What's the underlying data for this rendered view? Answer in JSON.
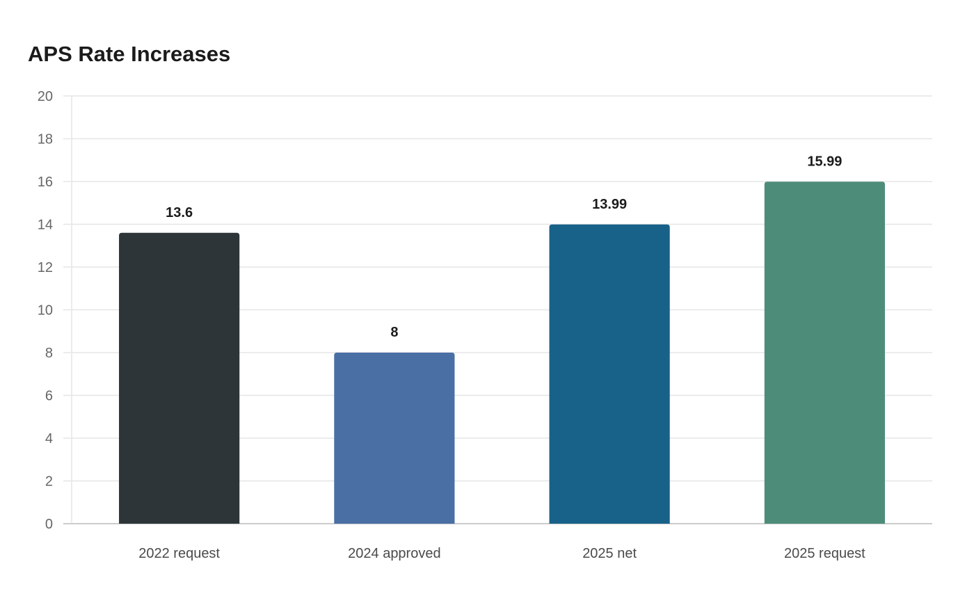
{
  "chart_data": {
    "type": "bar",
    "title": "APS Rate Increases",
    "xlabel": "",
    "ylabel": "",
    "categories": [
      "2022 request",
      "2024 approved",
      "2025 net",
      "2025 request"
    ],
    "values": [
      13.6,
      8,
      13.99,
      15.99
    ],
    "value_labels": [
      "13.6",
      "8",
      "13.99",
      "15.99"
    ],
    "colors": [
      "#2d3538",
      "#4a6fa5",
      "#186189",
      "#4e8c7a"
    ],
    "ylim": [
      0,
      20
    ],
    "yticks": [
      0,
      2,
      4,
      6,
      8,
      10,
      12,
      14,
      16,
      18,
      20
    ],
    "grid": true,
    "legend": "none"
  }
}
